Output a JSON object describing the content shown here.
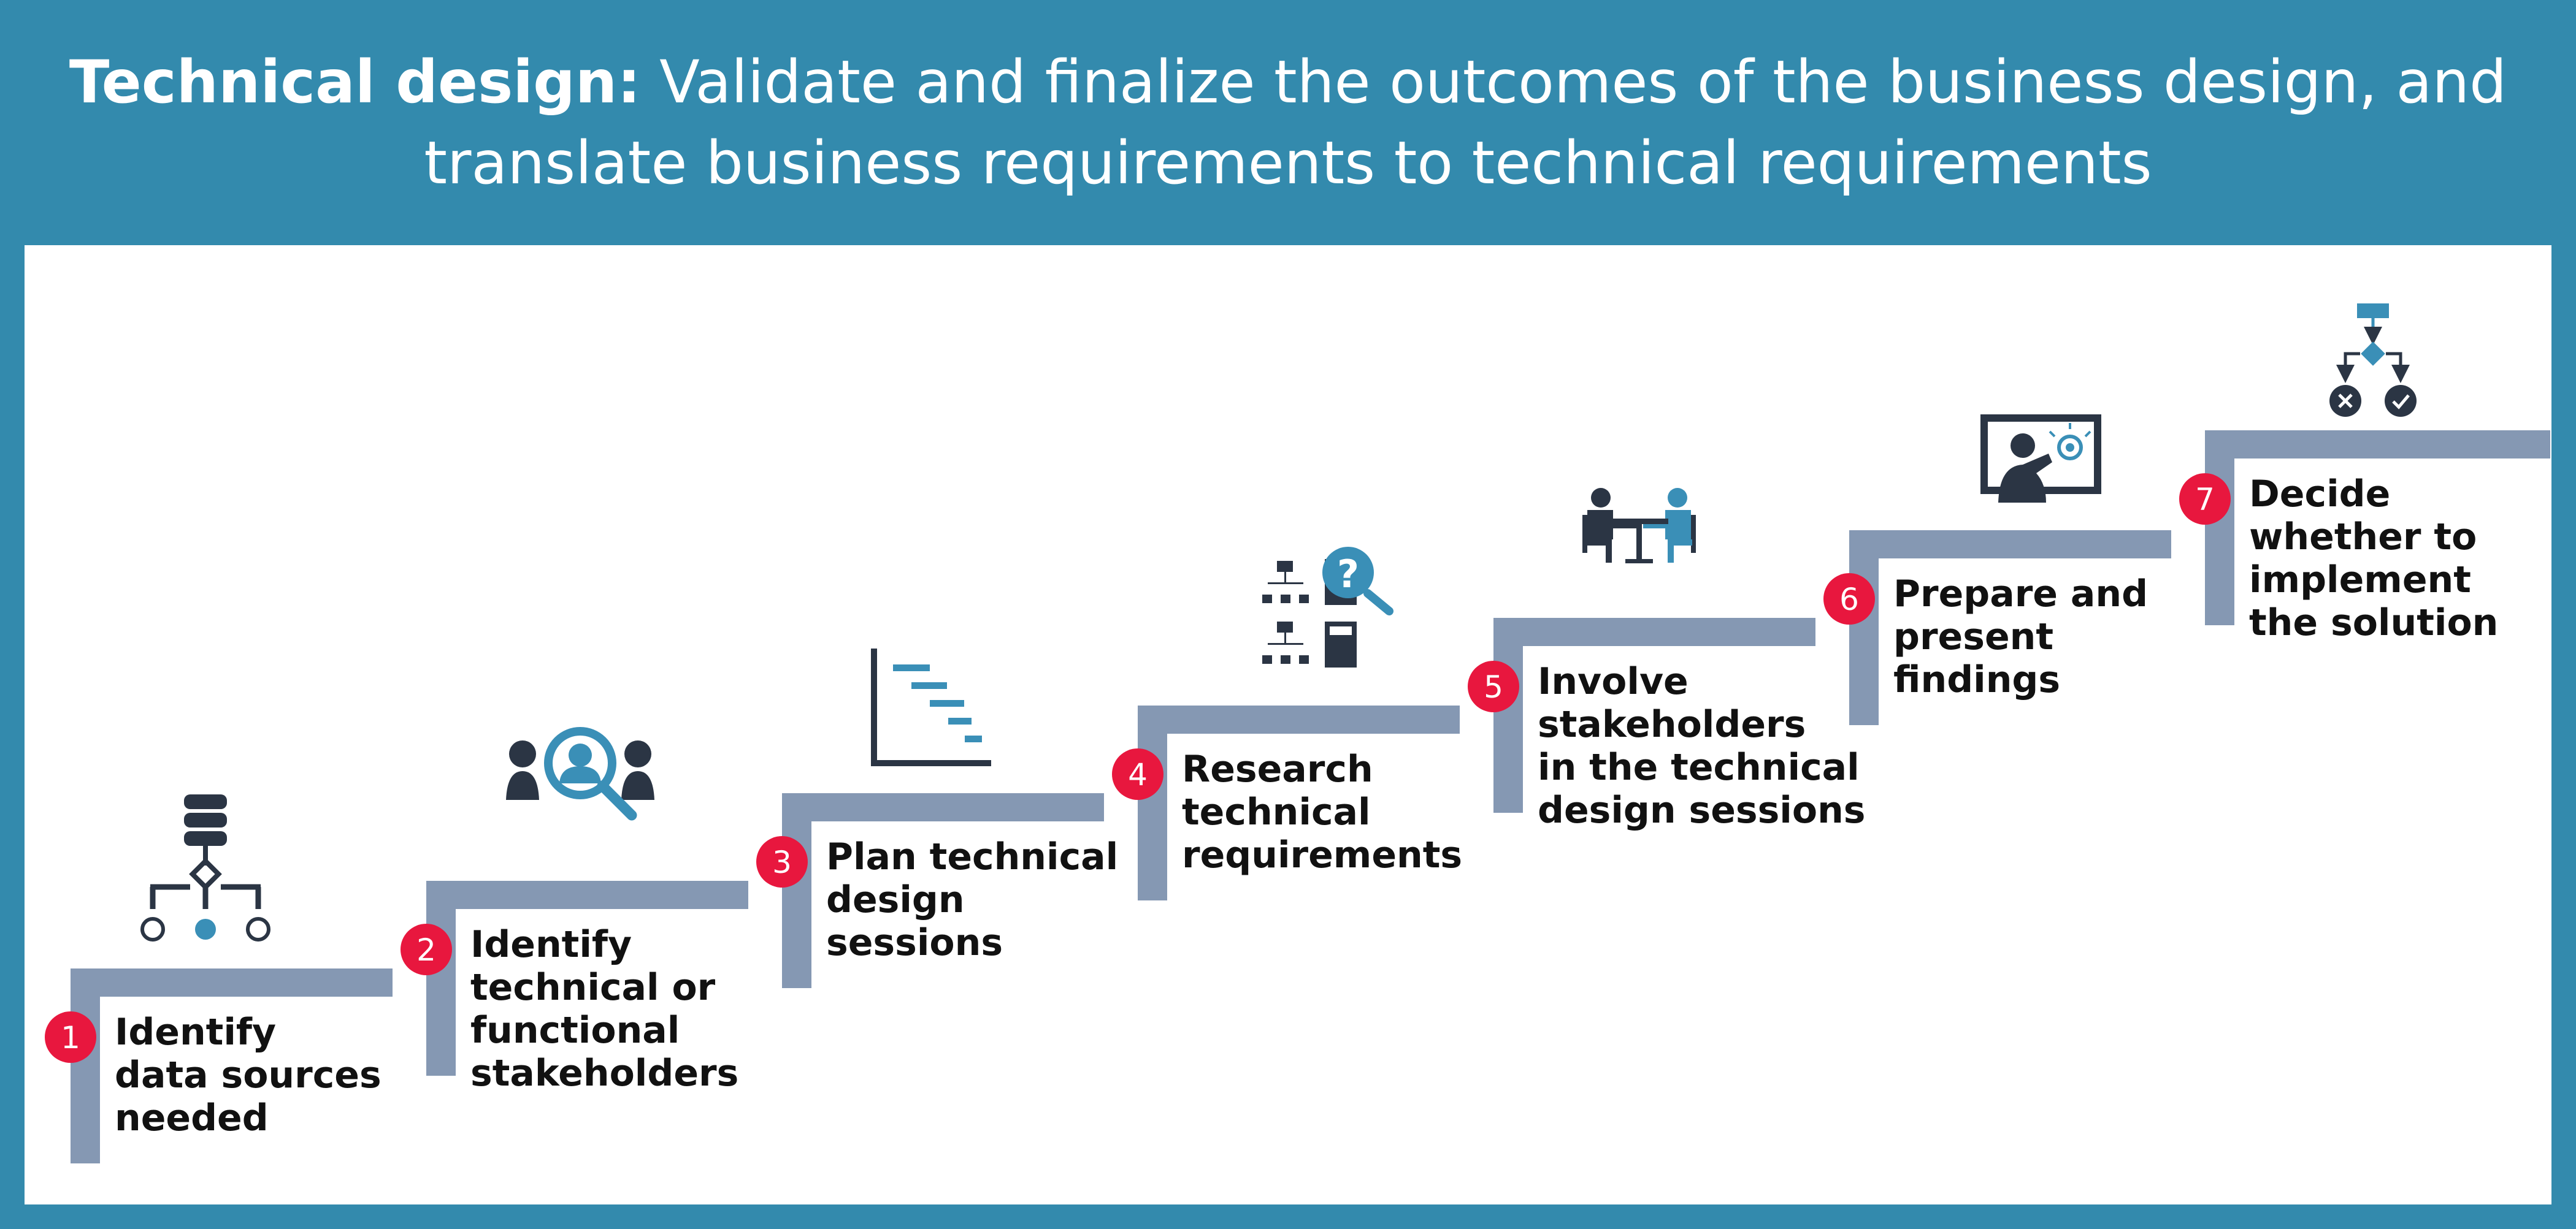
{
  "header": {
    "title_bold": "Technical design:",
    "title_line1": "Validate and finalize the outcomes of the business design, and",
    "title_line2": "translate business requirements to technical requirements"
  },
  "colors": {
    "header_bg": "#338aad",
    "panel_bg": "#ffffff",
    "step_bar": "#8598b3",
    "badge": "#e8173e",
    "icon_dark": "#2b3544",
    "icon_accent": "#3a8fb7"
  },
  "steps": [
    {
      "number": "1",
      "lines": [
        "Identify",
        "data sources",
        "needed"
      ],
      "icon": "database-hierarchy-icon"
    },
    {
      "number": "2",
      "lines": [
        "Identify",
        "technical or",
        "functional",
        "stakeholders"
      ],
      "icon": "people-search-icon"
    },
    {
      "number": "3",
      "lines": [
        "Plan technical",
        "design",
        "sessions"
      ],
      "icon": "gantt-chart-icon"
    },
    {
      "number": "4",
      "lines": [
        "Research",
        "technical",
        "requirements"
      ],
      "icon": "org-chart-calculator-search-icon"
    },
    {
      "number": "5",
      "lines": [
        "Involve",
        "stakeholders",
        "in the technical",
        "design sessions"
      ],
      "icon": "meeting-table-icon"
    },
    {
      "number": "6",
      "lines": [
        "Prepare and",
        "present",
        "findings"
      ],
      "icon": "presentation-screen-icon"
    },
    {
      "number": "7",
      "lines": [
        "Decide",
        "whether to",
        "implement",
        "the solution"
      ],
      "icon": "decision-flowchart-icon"
    }
  ]
}
